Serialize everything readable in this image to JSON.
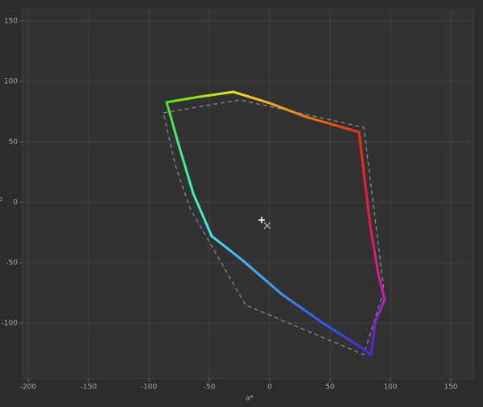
{
  "chart_data": {
    "type": "line",
    "x_label": "a*",
    "y_label": "b*",
    "xlim": [
      -204.7,
      168.7
    ],
    "ylim": [
      -146,
      159.3
    ],
    "xticks": [
      -200,
      -150,
      -100,
      -50,
      0,
      50,
      100,
      150
    ],
    "yticks": [
      -100,
      -50,
      0,
      50,
      100,
      150
    ],
    "grid": true,
    "series": [
      {
        "name": "reference",
        "color": "#8a8a8a",
        "dash": "5,4",
        "x": [
          -88,
          -24.7,
          78,
          94.7,
          78,
          -20,
          -50,
          -66,
          -78,
          -88
        ],
        "values": [
          74,
          84.7,
          62,
          -72.7,
          -126,
          -85,
          -32.7,
          -5,
          30,
          74
        ]
      },
      {
        "name": "gamut",
        "x": [
          -85.3,
          -60,
          -30,
          0,
          30,
          74,
          83.3,
          90,
          95.3,
          87.3,
          84,
          76.7,
          43.3,
          10,
          -23.3,
          -48,
          -63.3,
          -75.3,
          -85.3
        ],
        "values": [
          82.7,
          87,
          91.3,
          82,
          70.7,
          58,
          -19.3,
          -59.3,
          -80.7,
          -99.3,
          -126,
          -120.7,
          -99.3,
          -76,
          -47.3,
          -28,
          7.3,
          47.3,
          82.7
        ],
        "colors": [
          "#52e02a",
          "#9ae020",
          "#f0e020",
          "#f0b020",
          "#f07818",
          "#f03010",
          "#e81850",
          "#e01890",
          "#c020c8",
          "#8020d8",
          "#6020e0",
          "#4030e8",
          "#3858f0",
          "#4090f0",
          "#40b8f0",
          "#40e0f0",
          "#40f0b0",
          "#40f080",
          "#52e02a"
        ]
      }
    ],
    "markers": [
      {
        "name": "white-point",
        "symbol": "+",
        "color": "#ffffff",
        "x": -6.7,
        "y": -14.7
      },
      {
        "name": "reference-white",
        "symbol": "x",
        "color": "#9a9a9a",
        "x": -2,
        "y": -19.3
      }
    ]
  }
}
